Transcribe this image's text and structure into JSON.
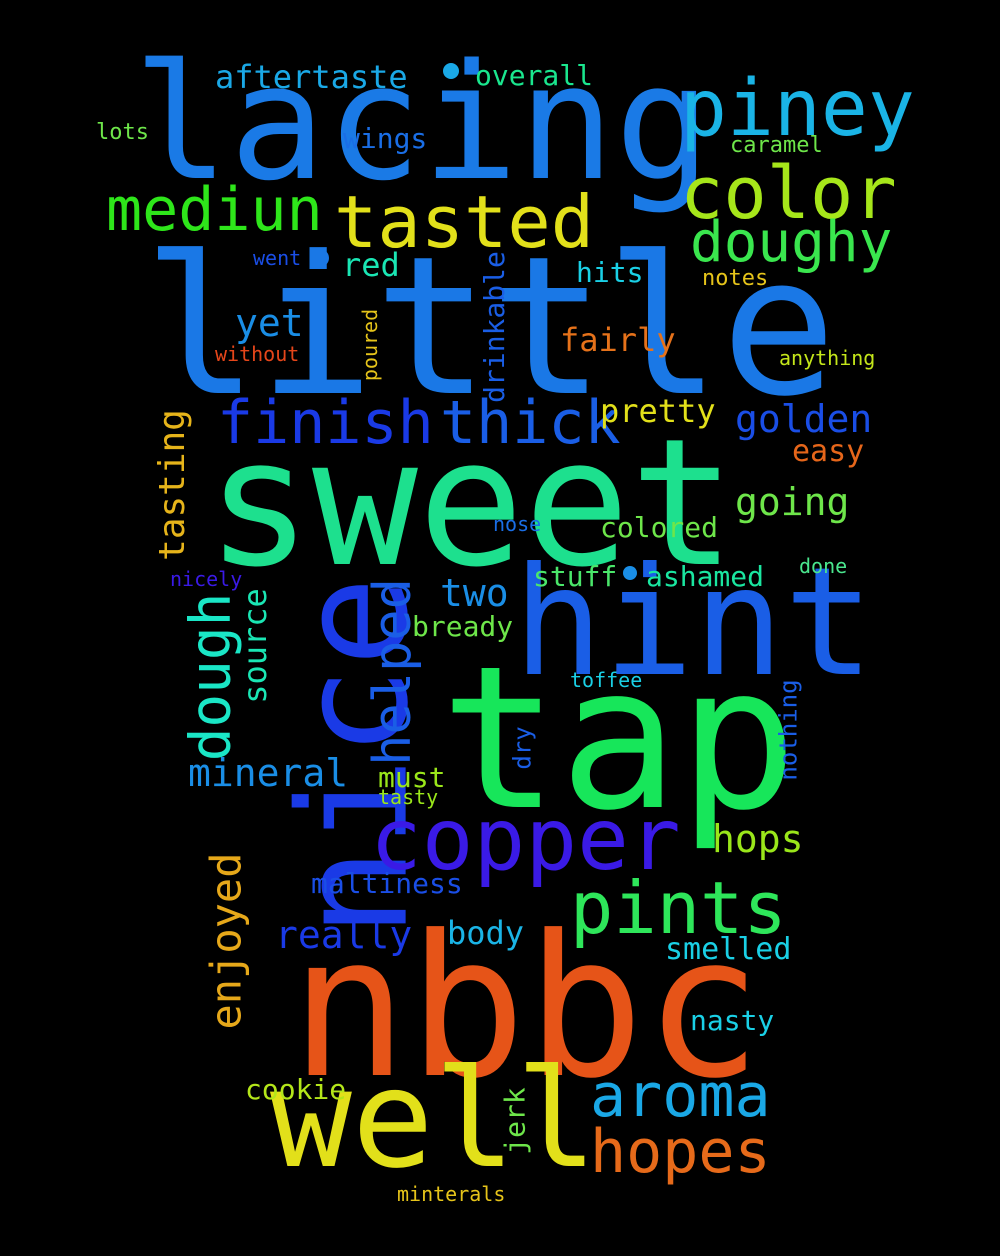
{
  "words": [
    {
      "text": "little",
      "color": "#1a78e6"
    },
    {
      "text": "sweet",
      "color": "#1de08e"
    },
    {
      "text": "nbbc",
      "color": "#e65418"
    },
    {
      "text": "tap",
      "color": "#17e65a"
    },
    {
      "text": "lacing",
      "color": "#1a7ae6"
    },
    {
      "text": "nice",
      "color": "#1a3ae6"
    },
    {
      "text": "hint",
      "color": "#1a5ee6"
    },
    {
      "text": "well",
      "color": "#e2e01a"
    },
    {
      "text": "copper",
      "color": "#3a1ae6"
    },
    {
      "text": "piney",
      "color": "#1ab4e6"
    },
    {
      "text": "tasted",
      "color": "#e2e01a"
    },
    {
      "text": "color",
      "color": "#a6e61a"
    },
    {
      "text": "mediun",
      "color": "#2ee61a"
    },
    {
      "text": "doughy",
      "color": "#3ae64e"
    },
    {
      "text": "pints",
      "color": "#2ee65a"
    },
    {
      "text": "finish",
      "color": "#1a3ae6"
    },
    {
      "text": "thick",
      "color": "#1a5ee6"
    },
    {
      "text": "aroma",
      "color": "#1aa8e6"
    },
    {
      "text": "hopes",
      "color": "#e66a1a"
    },
    {
      "text": "dough",
      "color": "#1ae6c6"
    },
    {
      "text": "helped",
      "color": "#1a5ee6"
    },
    {
      "text": "enjoyed",
      "color": "#e6a81a"
    },
    {
      "text": "tasting",
      "color": "#e6b41a"
    },
    {
      "text": "golden",
      "color": "#1a4ee6"
    },
    {
      "text": "going",
      "color": "#6ee64a"
    },
    {
      "text": "two",
      "color": "#1a8ee6"
    },
    {
      "text": "mineral",
      "color": "#1a8ee6"
    },
    {
      "text": "really",
      "color": "#1a3ae6"
    },
    {
      "text": "hops",
      "color": "#9ae61a"
    },
    {
      "text": "yet",
      "color": "#1a8ee6"
    },
    {
      "text": "aftertaste",
      "color": "#1aa8e6"
    },
    {
      "text": "pretty",
      "color": "#e2e01a"
    },
    {
      "text": "source",
      "color": "#1ae6b4"
    },
    {
      "text": "fairly",
      "color": "#e6721a"
    },
    {
      "text": "overall",
      "color": "#1ae68e"
    },
    {
      "text": "wings",
      "color": "#1a6ee6"
    },
    {
      "text": "red",
      "color": "#1ae6b4"
    },
    {
      "text": "hits",
      "color": "#1ad0e6"
    },
    {
      "text": "drinkable",
      "color": "#1a5ee6"
    },
    {
      "text": "body",
      "color": "#1ab4e6"
    },
    {
      "text": "smelled",
      "color": "#1ad0e6"
    },
    {
      "text": "nasty",
      "color": "#1ad0e6"
    },
    {
      "text": "maltiness",
      "color": "#1a4ee6"
    },
    {
      "text": "easy",
      "color": "#e6661a"
    },
    {
      "text": "colored",
      "color": "#6ee64a"
    },
    {
      "text": "stuff",
      "color": "#4ae66a"
    },
    {
      "text": "ashamed",
      "color": "#1ae6a0"
    },
    {
      "text": "bready",
      "color": "#6ee64a"
    },
    {
      "text": "must",
      "color": "#9ae61a"
    },
    {
      "text": "cookie",
      "color": "#b4e61a"
    },
    {
      "text": "jerk",
      "color": "#6ee64a"
    },
    {
      "text": "dry",
      "color": "#1a5ee6"
    },
    {
      "text": "nothing",
      "color": "#1a5ee6"
    },
    {
      "text": "lots",
      "color": "#6ee64a"
    },
    {
      "text": "caramel",
      "color": "#6ee64a"
    },
    {
      "text": "went",
      "color": "#1a4ee6"
    },
    {
      "text": "notes",
      "color": "#e6c41a"
    },
    {
      "text": "without",
      "color": "#e6461a"
    },
    {
      "text": "poured",
      "color": "#e6c41a"
    },
    {
      "text": "anything",
      "color": "#c4e61a"
    },
    {
      "text": "nose",
      "color": "#1a6ee6"
    },
    {
      "text": "nicely",
      "color": "#3a1ae6"
    },
    {
      "text": "done",
      "color": "#4ae68e"
    },
    {
      "text": "toffee",
      "color": "#1ad0e6"
    },
    {
      "text": "tasty",
      "color": "#9ae61a"
    },
    {
      "text": "minterals",
      "color": "#e6c41a"
    }
  ]
}
